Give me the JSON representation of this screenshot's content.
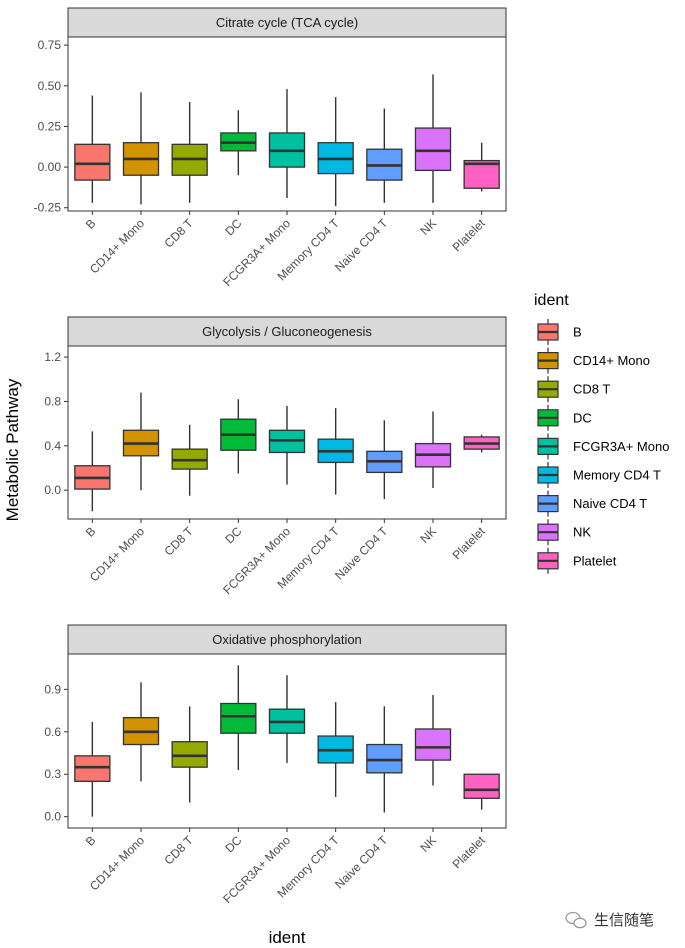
{
  "figure": {
    "ylabel": "Metabolic Pathway",
    "xlabel": "ident",
    "legend_title": "ident",
    "watermark": "生信随笔",
    "watermark_icon": "wechat-icon"
  },
  "categories": [
    "B",
    "CD14+ Mono",
    "CD8 T",
    "DC",
    "FCGR3A+ Mono",
    "Memory CD4 T",
    "Naive CD4 T",
    "NK",
    "Platelet"
  ],
  "colors": [
    "#F8766D",
    "#D39200",
    "#93AA00",
    "#00BA38",
    "#00C19F",
    "#00B9E3",
    "#619CFF",
    "#DB72FB",
    "#FF61C3"
  ],
  "chart_data": [
    {
      "type": "boxplot",
      "title": "Citrate cycle (TCA cycle)",
      "ylim": [
        -0.27,
        0.8
      ],
      "yticks": [
        -0.25,
        0.0,
        0.25,
        0.5,
        0.75
      ],
      "ytick_labels": [
        "-0.25",
        "0.00",
        "0.25",
        "0.50",
        "0.75"
      ],
      "boxes": [
        {
          "category": "B",
          "min": -0.22,
          "q1": -0.08,
          "median": 0.02,
          "q3": 0.14,
          "max": 0.44
        },
        {
          "category": "CD14+ Mono",
          "min": -0.23,
          "q1": -0.05,
          "median": 0.05,
          "q3": 0.15,
          "max": 0.46
        },
        {
          "category": "CD8 T",
          "min": -0.22,
          "q1": -0.05,
          "median": 0.05,
          "q3": 0.14,
          "max": 0.4
        },
        {
          "category": "DC",
          "min": -0.05,
          "q1": 0.1,
          "median": 0.15,
          "q3": 0.21,
          "max": 0.35
        },
        {
          "category": "FCGR3A+ Mono",
          "min": -0.19,
          "q1": 0.0,
          "median": 0.1,
          "q3": 0.21,
          "max": 0.48
        },
        {
          "category": "Memory CD4 T",
          "min": -0.24,
          "q1": -0.04,
          "median": 0.05,
          "q3": 0.15,
          "max": 0.43
        },
        {
          "category": "Naive CD4 T",
          "min": -0.22,
          "q1": -0.08,
          "median": 0.01,
          "q3": 0.11,
          "max": 0.36
        },
        {
          "category": "NK",
          "min": -0.22,
          "q1": -0.02,
          "median": 0.1,
          "q3": 0.24,
          "max": 0.57
        },
        {
          "category": "Platelet",
          "min": -0.15,
          "q1": -0.13,
          "median": 0.02,
          "q3": 0.04,
          "max": 0.15
        }
      ]
    },
    {
      "type": "boxplot",
      "title": "Glycolysis / Gluconeogenesis",
      "ylim": [
        -0.26,
        1.3
      ],
      "yticks": [
        0.0,
        0.4,
        0.8,
        1.2
      ],
      "ytick_labels": [
        "0.0",
        "0.4",
        "0.8",
        "1.2"
      ],
      "boxes": [
        {
          "category": "B",
          "min": -0.19,
          "q1": 0.01,
          "median": 0.11,
          "q3": 0.22,
          "max": 0.53
        },
        {
          "category": "CD14+ Mono",
          "min": 0.0,
          "q1": 0.31,
          "median": 0.42,
          "q3": 0.54,
          "max": 0.88
        },
        {
          "category": "CD8 T",
          "min": -0.05,
          "q1": 0.19,
          "median": 0.27,
          "q3": 0.37,
          "max": 0.59
        },
        {
          "category": "DC",
          "min": 0.15,
          "q1": 0.36,
          "median": 0.5,
          "q3": 0.64,
          "max": 0.82
        },
        {
          "category": "FCGR3A+ Mono",
          "min": 0.05,
          "q1": 0.34,
          "median": 0.45,
          "q3": 0.54,
          "max": 0.76
        },
        {
          "category": "Memory CD4 T",
          "min": -0.04,
          "q1": 0.25,
          "median": 0.35,
          "q3": 0.46,
          "max": 0.74
        },
        {
          "category": "Naive CD4 T",
          "min": -0.08,
          "q1": 0.16,
          "median": 0.26,
          "q3": 0.35,
          "max": 0.63
        },
        {
          "category": "NK",
          "min": 0.02,
          "q1": 0.21,
          "median": 0.32,
          "q3": 0.42,
          "max": 0.71
        },
        {
          "category": "Platelet",
          "min": 0.34,
          "q1": 0.37,
          "median": 0.42,
          "q3": 0.48,
          "max": 0.5
        }
      ]
    },
    {
      "type": "boxplot",
      "title": "Oxidative phosphorylation",
      "ylim": [
        -0.08,
        1.15
      ],
      "yticks": [
        0.0,
        0.3,
        0.6,
        0.9
      ],
      "ytick_labels": [
        "0.0",
        "0.3",
        "0.6",
        "0.9"
      ],
      "boxes": [
        {
          "category": "B",
          "min": 0.0,
          "q1": 0.25,
          "median": 0.35,
          "q3": 0.43,
          "max": 0.67
        },
        {
          "category": "CD14+ Mono",
          "min": 0.25,
          "q1": 0.51,
          "median": 0.6,
          "q3": 0.7,
          "max": 0.95
        },
        {
          "category": "CD8 T",
          "min": 0.1,
          "q1": 0.35,
          "median": 0.43,
          "q3": 0.53,
          "max": 0.78
        },
        {
          "category": "DC",
          "min": 0.33,
          "q1": 0.59,
          "median": 0.71,
          "q3": 0.8,
          "max": 1.07
        },
        {
          "category": "FCGR3A+ Mono",
          "min": 0.38,
          "q1": 0.59,
          "median": 0.67,
          "q3": 0.76,
          "max": 1.0
        },
        {
          "category": "Memory CD4 T",
          "min": 0.14,
          "q1": 0.38,
          "median": 0.47,
          "q3": 0.57,
          "max": 0.81
        },
        {
          "category": "Naive CD4 T",
          "min": 0.03,
          "q1": 0.31,
          "median": 0.4,
          "q3": 0.51,
          "max": 0.78
        },
        {
          "category": "NK",
          "min": 0.22,
          "q1": 0.4,
          "median": 0.49,
          "q3": 0.62,
          "max": 0.86
        },
        {
          "category": "Platelet",
          "min": 0.05,
          "q1": 0.13,
          "median": 0.19,
          "q3": 0.3,
          "max": 0.3
        }
      ]
    }
  ]
}
